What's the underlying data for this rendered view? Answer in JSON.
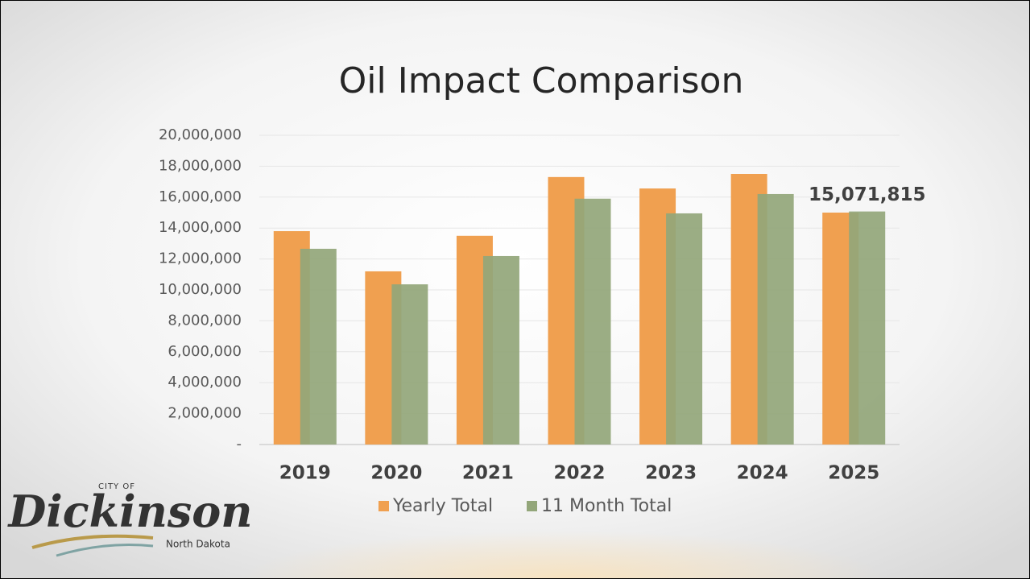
{
  "chart_data": {
    "type": "bar",
    "title": "Oil Impact Comparison",
    "categories": [
      "2019",
      "2020",
      "2021",
      "2022",
      "2023",
      "2024",
      "2025"
    ],
    "series": [
      {
        "name": "Yearly Total",
        "color": "#f0a050",
        "values": [
          13800000,
          11200000,
          13500000,
          17300000,
          16560000,
          17500000,
          15000000
        ]
      },
      {
        "name": "11 Month Total",
        "color": "#93a67a",
        "values": [
          12660000,
          10360000,
          12190000,
          15900000,
          14950000,
          16200000,
          15071815
        ],
        "value_labels": [
          null,
          null,
          null,
          null,
          null,
          null,
          "15,071,815"
        ]
      }
    ],
    "ylim": [
      0,
      20000000
    ],
    "yticks": [
      {
        "value": 0,
        "label": "-"
      },
      {
        "value": 2000000,
        "label": "2,000,000"
      },
      {
        "value": 4000000,
        "label": "4,000,000"
      },
      {
        "value": 6000000,
        "label": "6,000,000"
      },
      {
        "value": 8000000,
        "label": "8,000,000"
      },
      {
        "value": 10000000,
        "label": "10,000,000"
      },
      {
        "value": 12000000,
        "label": "12,000,000"
      },
      {
        "value": 14000000,
        "label": "14,000,000"
      },
      {
        "value": 16000000,
        "label": "16,000,000"
      },
      {
        "value": 18000000,
        "label": "18,000,000"
      },
      {
        "value": 20000000,
        "label": "20,000,000"
      }
    ],
    "grid": true,
    "legend": "bottom"
  },
  "logo": {
    "top": "CITY OF",
    "name": "Dickinson",
    "sub": "North Dakota"
  }
}
